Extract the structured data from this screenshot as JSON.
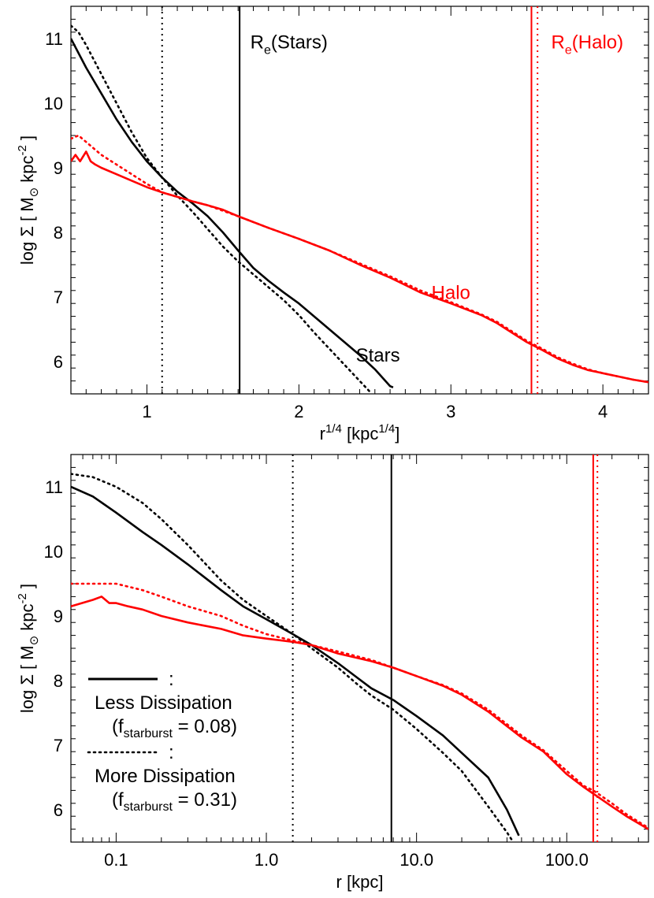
{
  "chart_data": [
    {
      "type": "line",
      "xlabel": {
        "base": "r",
        "sup": "1/4",
        "unit_pre": "[kpc",
        "unit_sup": "1/4",
        "unit_post": "]"
      },
      "ylabel": {
        "pre": "log Σ  [ M",
        "sub": "⊙",
        "mid": " kpc",
        "sup": "-2",
        "post": " ]"
      },
      "x_scale": "linear",
      "xlim": [
        0.5,
        4.3
      ],
      "ylim": [
        5.5,
        11.5
      ],
      "xticks": [
        1,
        2,
        3,
        4
      ],
      "xtick_labels": [
        "1",
        "2",
        "3",
        "4"
      ],
      "yticks": [
        6,
        7,
        8,
        9,
        10,
        11
      ],
      "ytick_labels": [
        "6",
        "7",
        "8",
        "9",
        "10",
        "11"
      ],
      "colors": {
        "stars": "#000000",
        "halo": "#ff0000"
      },
      "series": [
        {
          "group": "stars",
          "style": "solid",
          "x": [
            0.5,
            0.6,
            0.7,
            0.8,
            0.9,
            1.0,
            1.1,
            1.2,
            1.3,
            1.4,
            1.5,
            1.6,
            1.7,
            1.8,
            1.9,
            2.0,
            2.1,
            2.2,
            2.3,
            2.4,
            2.5,
            2.6,
            2.62
          ],
          "y": [
            11.0,
            10.55,
            10.15,
            9.75,
            9.4,
            9.1,
            8.85,
            8.63,
            8.45,
            8.25,
            8.0,
            7.72,
            7.45,
            7.25,
            7.07,
            6.9,
            6.7,
            6.5,
            6.3,
            6.1,
            5.88,
            5.62,
            5.6
          ]
        },
        {
          "group": "stars",
          "style": "dotted",
          "x": [
            0.5,
            0.55,
            0.6,
            0.7,
            0.8,
            0.9,
            1.0,
            1.1,
            1.2,
            1.3,
            1.4,
            1.5,
            1.6,
            1.7,
            1.8,
            1.9,
            2.0,
            2.1,
            2.2,
            2.3,
            2.4,
            2.48
          ],
          "y": [
            11.2,
            11.1,
            10.9,
            10.45,
            10.0,
            9.55,
            9.15,
            8.85,
            8.57,
            8.32,
            8.05,
            7.78,
            7.55,
            7.35,
            7.15,
            6.95,
            6.72,
            6.45,
            6.2,
            5.95,
            5.7,
            5.5
          ]
        },
        {
          "group": "halo",
          "style": "solid",
          "x": [
            0.5,
            0.53,
            0.56,
            0.6,
            0.63,
            0.66,
            0.7,
            0.8,
            0.9,
            1.0,
            1.1,
            1.2,
            1.3,
            1.4,
            1.5,
            1.6,
            1.8,
            2.0,
            2.2,
            2.4,
            2.6,
            2.8,
            3.0,
            3.2,
            3.3,
            3.4,
            3.5,
            3.6,
            3.7,
            3.8,
            3.9,
            4.0,
            4.1,
            4.2,
            4.3
          ],
          "y": [
            9.1,
            9.2,
            9.1,
            9.25,
            9.1,
            9.05,
            9.0,
            8.9,
            8.8,
            8.7,
            8.62,
            8.55,
            8.48,
            8.42,
            8.35,
            8.25,
            8.07,
            7.9,
            7.72,
            7.5,
            7.3,
            7.07,
            6.9,
            6.72,
            6.6,
            6.45,
            6.3,
            6.18,
            6.05,
            5.95,
            5.87,
            5.82,
            5.77,
            5.72,
            5.68
          ]
        },
        {
          "group": "halo",
          "style": "dotted",
          "x": [
            0.5,
            0.55,
            0.6,
            0.65,
            0.7,
            0.8,
            0.9,
            1.0,
            1.1,
            1.2,
            1.3,
            1.4,
            1.6,
            1.8,
            2.0,
            2.2,
            2.4,
            2.6,
            2.8,
            3.0,
            3.2,
            3.3,
            3.4,
            3.5,
            3.6,
            3.7,
            3.8,
            3.9,
            4.0,
            4.1,
            4.2,
            4.3
          ],
          "y": [
            9.45,
            9.5,
            9.4,
            9.3,
            9.2,
            9.05,
            8.9,
            8.75,
            8.62,
            8.55,
            8.48,
            8.42,
            8.25,
            8.07,
            7.9,
            7.72,
            7.52,
            7.32,
            7.1,
            6.92,
            6.73,
            6.62,
            6.47,
            6.32,
            6.2,
            6.07,
            5.97,
            5.88,
            5.82,
            5.77,
            5.72,
            5.68
          ]
        }
      ],
      "vlines": [
        {
          "x": 1.1,
          "group": "stars",
          "style": "dotted"
        },
        {
          "x": 1.61,
          "group": "stars",
          "style": "solid"
        },
        {
          "x": 3.53,
          "group": "halo",
          "style": "solid"
        },
        {
          "x": 3.57,
          "group": "halo",
          "style": "dotted"
        }
      ],
      "annotations": [
        {
          "kind": "re",
          "main": "R",
          "sub": "e",
          "tail": "(Stars)",
          "group": "stars",
          "x": 1.68,
          "y": 10.85
        },
        {
          "kind": "re",
          "main": "R",
          "sub": "e",
          "tail": "(Halo)",
          "group": "halo",
          "x": 3.66,
          "y": 10.85
        },
        {
          "kind": "text",
          "text": "Halo",
          "group": "halo",
          "x": 3.0,
          "y": 6.97
        },
        {
          "kind": "text",
          "text": "Stars",
          "group": "stars",
          "x": 2.52,
          "y": 6.0
        }
      ]
    },
    {
      "type": "line",
      "xlabel": {
        "base": "r",
        "unit_pre": "[kpc]"
      },
      "ylabel": {
        "pre": "log Σ  [ M",
        "sub": "⊙",
        "mid": " kpc",
        "sup": "-2",
        "post": " ]"
      },
      "x_scale": "log",
      "xlim": [
        0.05,
        350
      ],
      "ylim": [
        5.5,
        11.5
      ],
      "xticks": [
        0.1,
        1,
        10,
        100
      ],
      "xtick_labels": [
        "0.1",
        "1.0",
        "10.0",
        "100.0"
      ],
      "yticks": [
        6,
        7,
        8,
        9,
        10,
        11
      ],
      "ytick_labels": [
        "6",
        "7",
        "8",
        "9",
        "10",
        "11"
      ],
      "colors": {
        "stars": "#000000",
        "halo": "#ff0000"
      },
      "series": [
        {
          "group": "stars",
          "style": "solid",
          "x": [
            0.05,
            0.07,
            0.1,
            0.15,
            0.2,
            0.3,
            0.5,
            0.7,
            1.0,
            1.5,
            2.0,
            3.0,
            4.0,
            5.0,
            7.0,
            10.0,
            15.0,
            20.0,
            30.0,
            40.0,
            48.0
          ],
          "y": [
            11.0,
            10.85,
            10.6,
            10.3,
            10.1,
            9.8,
            9.4,
            9.15,
            8.95,
            8.72,
            8.55,
            8.27,
            8.05,
            7.88,
            7.7,
            7.45,
            7.15,
            6.88,
            6.5,
            6.0,
            5.6
          ]
        },
        {
          "group": "stars",
          "style": "dotted",
          "x": [
            0.05,
            0.07,
            0.1,
            0.15,
            0.2,
            0.3,
            0.5,
            0.7,
            1.0,
            1.5,
            2.0,
            3.0,
            4.0,
            5.0,
            7.0,
            10.0,
            15.0,
            20.0,
            30.0,
            40.0,
            44.0
          ],
          "y": [
            11.2,
            11.15,
            11.0,
            10.75,
            10.5,
            10.1,
            9.55,
            9.25,
            9.0,
            8.72,
            8.5,
            8.2,
            7.95,
            7.77,
            7.55,
            7.25,
            6.88,
            6.6,
            6.05,
            5.65,
            5.5
          ]
        },
        {
          "group": "halo",
          "style": "solid",
          "x": [
            0.05,
            0.07,
            0.08,
            0.09,
            0.1,
            0.12,
            0.15,
            0.2,
            0.3,
            0.5,
            0.7,
            1.0,
            1.5,
            2.0,
            3.0,
            5.0,
            7.0,
            10.0,
            15.0,
            20.0,
            30.0,
            50.0,
            70.0,
            100.0,
            130.0,
            150.0,
            200.0,
            250.0,
            350.0
          ],
          "y": [
            9.15,
            9.25,
            9.3,
            9.2,
            9.2,
            9.15,
            9.1,
            9.0,
            8.9,
            8.8,
            8.7,
            8.65,
            8.6,
            8.55,
            8.42,
            8.3,
            8.2,
            8.07,
            7.92,
            7.78,
            7.52,
            7.12,
            6.9,
            6.55,
            6.35,
            6.25,
            6.05,
            5.9,
            5.7
          ]
        },
        {
          "group": "halo",
          "style": "dotted",
          "x": [
            0.05,
            0.07,
            0.1,
            0.15,
            0.2,
            0.3,
            0.5,
            0.7,
            1.0,
            1.5,
            2.0,
            3.0,
            5.0,
            7.0,
            10.0,
            15.0,
            20.0,
            30.0,
            50.0,
            70.0,
            100.0,
            130.0,
            150.0,
            200.0,
            250.0,
            350.0
          ],
          "y": [
            9.5,
            9.5,
            9.5,
            9.4,
            9.3,
            9.15,
            9.0,
            8.85,
            8.72,
            8.62,
            8.55,
            8.45,
            8.32,
            8.2,
            8.07,
            7.93,
            7.8,
            7.55,
            7.15,
            6.92,
            6.6,
            6.37,
            6.3,
            6.1,
            5.93,
            5.72
          ]
        }
      ],
      "vlines": [
        {
          "x": 1.5,
          "group": "stars",
          "style": "dotted"
        },
        {
          "x": 6.8,
          "group": "stars",
          "style": "solid"
        },
        {
          "x": 150,
          "group": "halo",
          "style": "solid"
        },
        {
          "x": 160,
          "group": "halo",
          "style": "dotted"
        }
      ],
      "legend": {
        "placement": "lower-left",
        "items": [
          {
            "style": "solid",
            "colon": ":",
            "label": "Less Dissipation",
            "param_pre": "(f",
            "param_sub": "starburst",
            "param_post": " = 0.08)"
          },
          {
            "style": "dotted",
            "colon": ":",
            "label": "More Dissipation",
            "param_pre": "(f",
            "param_sub": "starburst",
            "param_post": " = 0.31)"
          }
        ]
      }
    }
  ]
}
